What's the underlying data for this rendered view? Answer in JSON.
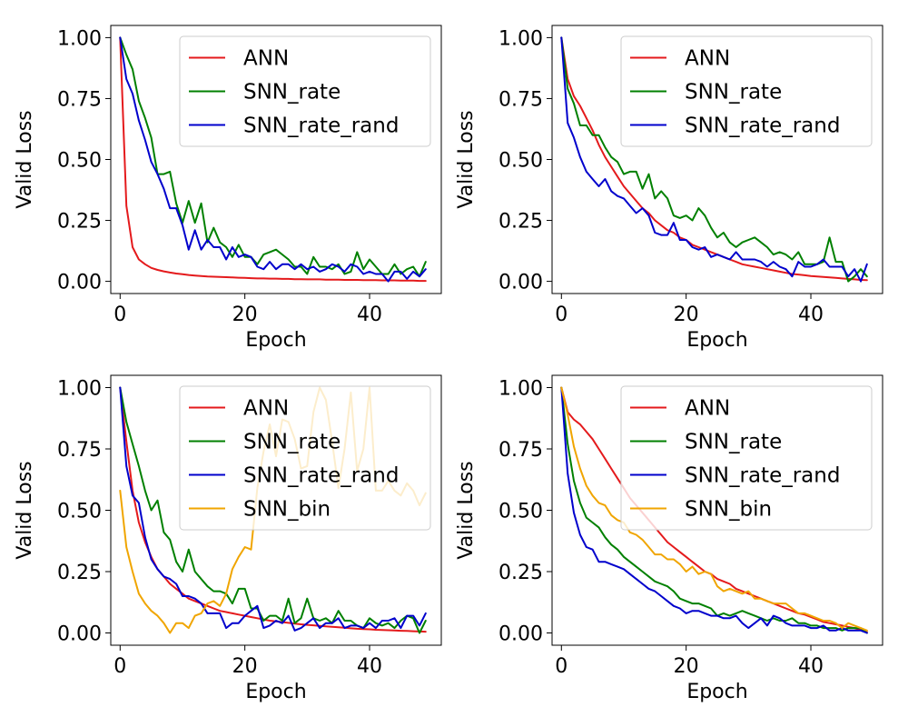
{
  "chart_data": [
    {
      "type": "line",
      "xlabel": "Epoch",
      "ylabel": "Valid Loss",
      "xlim": [
        -1.5,
        51.5
      ],
      "ylim": [
        -0.05,
        1.05
      ],
      "xticks": [
        0,
        20,
        40
      ],
      "xtick_labels": [
        "0",
        "20",
        "40"
      ],
      "yticks": [
        0,
        0.25,
        0.5,
        0.75,
        1.0
      ],
      "ytick_labels": [
        "0.00",
        "0.25",
        "0.50",
        "0.75",
        "1.00"
      ],
      "legend_position": "top-right",
      "series": [
        {
          "name": "ANN",
          "color": "#e41a1c",
          "values": [
            1.0,
            0.31,
            0.14,
            0.09,
            0.07,
            0.055,
            0.047,
            0.041,
            0.036,
            0.032,
            0.029,
            0.026,
            0.024,
            0.022,
            0.02,
            0.019,
            0.018,
            0.017,
            0.016,
            0.015,
            0.014,
            0.013,
            0.012,
            0.012,
            0.011,
            0.011,
            0.01,
            0.01,
            0.009,
            0.009,
            0.008,
            0.008,
            0.008,
            0.007,
            0.007,
            0.007,
            0.006,
            0.006,
            0.006,
            0.005,
            0.005,
            0.005,
            0.004,
            0.004,
            0.004,
            0.003,
            0.003,
            0.003,
            0.002,
            0.002
          ]
        },
        {
          "name": "SNN_rate",
          "color": "#008000",
          "values": [
            1.0,
            0.93,
            0.87,
            0.74,
            0.67,
            0.59,
            0.44,
            0.44,
            0.45,
            0.32,
            0.24,
            0.33,
            0.24,
            0.32,
            0.16,
            0.22,
            0.16,
            0.14,
            0.1,
            0.15,
            0.1,
            0.1,
            0.07,
            0.11,
            0.12,
            0.13,
            0.11,
            0.09,
            0.06,
            0.06,
            0.03,
            0.1,
            0.06,
            0.06,
            0.05,
            0.07,
            0.03,
            0.04,
            0.12,
            0.05,
            0.09,
            0.06,
            0.03,
            0.03,
            0.07,
            0.03,
            0.05,
            0.06,
            0.02,
            0.08
          ]
        },
        {
          "name": "SNN_rate_rand",
          "color": "#0000cc",
          "values": [
            1.0,
            0.83,
            0.77,
            0.66,
            0.58,
            0.49,
            0.44,
            0.38,
            0.3,
            0.3,
            0.23,
            0.13,
            0.21,
            0.13,
            0.17,
            0.14,
            0.14,
            0.09,
            0.14,
            0.1,
            0.11,
            0.1,
            0.06,
            0.05,
            0.08,
            0.05,
            0.07,
            0.07,
            0.05,
            0.07,
            0.05,
            0.06,
            0.04,
            0.05,
            0.07,
            0.06,
            0.04,
            0.07,
            0.06,
            0.03,
            0.04,
            0.03,
            0.03,
            0.0,
            0.04,
            0.04,
            0.01,
            0.04,
            0.02,
            0.05
          ]
        }
      ]
    },
    {
      "type": "line",
      "xlabel": "Epoch",
      "ylabel": "Valid Loss",
      "xlim": [
        -1.5,
        51.5
      ],
      "ylim": [
        -0.05,
        1.05
      ],
      "xticks": [
        0,
        20,
        40
      ],
      "xtick_labels": [
        "0",
        "20",
        "40"
      ],
      "yticks": [
        0,
        0.25,
        0.5,
        0.75,
        1.0
      ],
      "ytick_labels": [
        "0.00",
        "0.25",
        "0.50",
        "0.75",
        "1.00"
      ],
      "legend_position": "top-right",
      "series": [
        {
          "name": "ANN",
          "color": "#e41a1c",
          "values": [
            1.0,
            0.83,
            0.76,
            0.72,
            0.67,
            0.62,
            0.56,
            0.51,
            0.47,
            0.43,
            0.39,
            0.36,
            0.33,
            0.3,
            0.28,
            0.25,
            0.23,
            0.21,
            0.2,
            0.18,
            0.17,
            0.15,
            0.14,
            0.13,
            0.12,
            0.11,
            0.1,
            0.09,
            0.08,
            0.07,
            0.065,
            0.06,
            0.055,
            0.05,
            0.045,
            0.04,
            0.035,
            0.03,
            0.028,
            0.025,
            0.022,
            0.02,
            0.018,
            0.016,
            0.014,
            0.012,
            0.01,
            0.008,
            0.006,
            0.005
          ]
        },
        {
          "name": "SNN_rate",
          "color": "#008000",
          "values": [
            1.0,
            0.79,
            0.73,
            0.64,
            0.64,
            0.6,
            0.6,
            0.55,
            0.51,
            0.49,
            0.44,
            0.45,
            0.45,
            0.38,
            0.44,
            0.34,
            0.37,
            0.34,
            0.27,
            0.26,
            0.27,
            0.25,
            0.3,
            0.27,
            0.22,
            0.18,
            0.2,
            0.16,
            0.14,
            0.16,
            0.17,
            0.18,
            0.16,
            0.14,
            0.11,
            0.12,
            0.11,
            0.09,
            0.12,
            0.07,
            0.07,
            0.07,
            0.08,
            0.18,
            0.08,
            0.08,
            0.0,
            0.02,
            0.05,
            0.02
          ]
        },
        {
          "name": "SNN_rate_rand",
          "color": "#0000cc",
          "values": [
            1.0,
            0.65,
            0.59,
            0.51,
            0.45,
            0.42,
            0.39,
            0.42,
            0.37,
            0.35,
            0.34,
            0.31,
            0.28,
            0.3,
            0.27,
            0.2,
            0.19,
            0.19,
            0.24,
            0.17,
            0.17,
            0.14,
            0.13,
            0.14,
            0.1,
            0.11,
            0.1,
            0.09,
            0.12,
            0.09,
            0.09,
            0.09,
            0.08,
            0.06,
            0.08,
            0.06,
            0.05,
            0.02,
            0.08,
            0.06,
            0.06,
            0.07,
            0.09,
            0.06,
            0.06,
            0.06,
            0.02,
            0.05,
            0.0,
            0.07
          ]
        }
      ]
    },
    {
      "type": "line",
      "xlabel": "Epoch",
      "ylabel": "Valid Loss",
      "xlim": [
        -1.5,
        51.5
      ],
      "ylim": [
        -0.05,
        1.05
      ],
      "xticks": [
        0,
        20,
        40
      ],
      "xtick_labels": [
        "0",
        "20",
        "40"
      ],
      "yticks": [
        0,
        0.25,
        0.5,
        0.75,
        1.0
      ],
      "ytick_labels": [
        "0.00",
        "0.25",
        "0.50",
        "0.75",
        "1.00"
      ],
      "legend_position": "top-right",
      "series": [
        {
          "name": "ANN",
          "color": "#e41a1c",
          "values": [
            1.0,
            0.78,
            0.58,
            0.45,
            0.37,
            0.31,
            0.26,
            0.23,
            0.2,
            0.18,
            0.16,
            0.14,
            0.13,
            0.12,
            0.11,
            0.1,
            0.09,
            0.085,
            0.08,
            0.075,
            0.07,
            0.065,
            0.06,
            0.055,
            0.05,
            0.047,
            0.044,
            0.041,
            0.038,
            0.035,
            0.033,
            0.031,
            0.029,
            0.027,
            0.025,
            0.023,
            0.021,
            0.019,
            0.017,
            0.016,
            0.015,
            0.013,
            0.012,
            0.011,
            0.01,
            0.009,
            0.008,
            0.007,
            0.006,
            0.005
          ]
        },
        {
          "name": "SNN_rate",
          "color": "#008000",
          "values": [
            1.0,
            0.86,
            0.77,
            0.68,
            0.58,
            0.5,
            0.54,
            0.41,
            0.38,
            0.29,
            0.25,
            0.34,
            0.25,
            0.22,
            0.19,
            0.17,
            0.17,
            0.16,
            0.12,
            0.18,
            0.18,
            0.1,
            0.1,
            0.05,
            0.07,
            0.07,
            0.05,
            0.14,
            0.04,
            0.06,
            0.14,
            0.06,
            0.05,
            0.06,
            0.04,
            0.09,
            0.05,
            0.05,
            0.03,
            0.02,
            0.06,
            0.04,
            0.03,
            0.04,
            0.02,
            0.05,
            0.07,
            0.06,
            0.0,
            0.05
          ]
        },
        {
          "name": "SNN_rate_rand",
          "color": "#0000cc",
          "values": [
            1.0,
            0.68,
            0.56,
            0.53,
            0.39,
            0.3,
            0.26,
            0.23,
            0.22,
            0.2,
            0.15,
            0.15,
            0.14,
            0.12,
            0.08,
            0.08,
            0.08,
            0.02,
            0.04,
            0.04,
            0.07,
            0.09,
            0.11,
            0.02,
            0.03,
            0.05,
            0.04,
            0.07,
            0.01,
            0.02,
            0.04,
            0.06,
            0.02,
            0.04,
            0.04,
            0.06,
            0.02,
            0.03,
            0.03,
            0.02,
            0.04,
            0.02,
            0.05,
            0.05,
            0.06,
            0.02,
            0.07,
            0.07,
            0.03,
            0.08
          ]
        },
        {
          "name": "SNN_bin",
          "color": "#f0a500",
          "values": [
            0.58,
            0.35,
            0.25,
            0.16,
            0.12,
            0.09,
            0.07,
            0.04,
            0.0,
            0.04,
            0.04,
            0.02,
            0.07,
            0.08,
            0.12,
            0.13,
            0.11,
            0.16,
            0.26,
            0.31,
            0.35,
            0.34,
            0.59,
            0.74,
            0.85,
            0.72,
            0.87,
            0.86,
            0.79,
            0.67,
            0.68,
            0.9,
            1.0,
            0.95,
            0.78,
            0.59,
            0.75,
            0.98,
            0.66,
            0.75,
            1.0,
            0.58,
            0.58,
            0.62,
            0.58,
            0.56,
            0.61,
            0.58,
            0.52,
            0.57
          ]
        }
      ]
    },
    {
      "type": "line",
      "xlabel": "Epoch",
      "ylabel": "Valid Loss",
      "xlim": [
        -1.5,
        51.5
      ],
      "ylim": [
        -0.05,
        1.05
      ],
      "xticks": [
        0,
        20,
        40
      ],
      "xtick_labels": [
        "0",
        "20",
        "40"
      ],
      "yticks": [
        0,
        0.25,
        0.5,
        0.75,
        1.0
      ],
      "ytick_labels": [
        "0.00",
        "0.25",
        "0.50",
        "0.75",
        "1.00"
      ],
      "legend_position": "top-right",
      "series": [
        {
          "name": "ANN",
          "color": "#e41a1c",
          "values": [
            1.0,
            0.9,
            0.87,
            0.85,
            0.82,
            0.79,
            0.75,
            0.71,
            0.67,
            0.63,
            0.59,
            0.55,
            0.52,
            0.49,
            0.46,
            0.43,
            0.4,
            0.37,
            0.35,
            0.33,
            0.31,
            0.29,
            0.27,
            0.25,
            0.24,
            0.22,
            0.21,
            0.2,
            0.18,
            0.17,
            0.16,
            0.15,
            0.14,
            0.13,
            0.12,
            0.11,
            0.1,
            0.09,
            0.08,
            0.075,
            0.065,
            0.055,
            0.045,
            0.04,
            0.035,
            0.03,
            0.025,
            0.02,
            0.012,
            0.005
          ]
        },
        {
          "name": "SNN_rate",
          "color": "#008000",
          "values": [
            1.0,
            0.77,
            0.62,
            0.53,
            0.47,
            0.45,
            0.43,
            0.39,
            0.36,
            0.34,
            0.31,
            0.29,
            0.27,
            0.25,
            0.23,
            0.21,
            0.2,
            0.19,
            0.17,
            0.14,
            0.13,
            0.12,
            0.12,
            0.11,
            0.1,
            0.07,
            0.08,
            0.07,
            0.08,
            0.09,
            0.08,
            0.07,
            0.06,
            0.05,
            0.06,
            0.05,
            0.05,
            0.06,
            0.04,
            0.04,
            0.03,
            0.03,
            0.02,
            0.02,
            0.02,
            0.01,
            0.02,
            0.02,
            0.02,
            0.0
          ]
        },
        {
          "name": "SNN_rate_rand",
          "color": "#0000cc",
          "values": [
            1.0,
            0.65,
            0.49,
            0.4,
            0.35,
            0.34,
            0.29,
            0.29,
            0.28,
            0.27,
            0.26,
            0.24,
            0.22,
            0.2,
            0.18,
            0.17,
            0.15,
            0.13,
            0.11,
            0.1,
            0.08,
            0.09,
            0.09,
            0.08,
            0.07,
            0.07,
            0.06,
            0.06,
            0.07,
            0.04,
            0.02,
            0.04,
            0.06,
            0.03,
            0.07,
            0.06,
            0.04,
            0.03,
            0.03,
            0.03,
            0.02,
            0.02,
            0.03,
            0.01,
            0.01,
            0.02,
            0.01,
            0.01,
            0.01,
            0.0
          ]
        },
        {
          "name": "SNN_bin",
          "color": "#f0a500",
          "values": [
            1.0,
            0.89,
            0.76,
            0.67,
            0.6,
            0.56,
            0.53,
            0.52,
            0.48,
            0.46,
            0.45,
            0.41,
            0.4,
            0.38,
            0.35,
            0.32,
            0.32,
            0.3,
            0.3,
            0.28,
            0.25,
            0.27,
            0.24,
            0.25,
            0.24,
            0.19,
            0.17,
            0.18,
            0.17,
            0.16,
            0.17,
            0.14,
            0.14,
            0.13,
            0.12,
            0.12,
            0.12,
            0.1,
            0.08,
            0.08,
            0.07,
            0.06,
            0.05,
            0.05,
            0.04,
            0.02,
            0.04,
            0.03,
            0.02,
            0.01
          ]
        }
      ]
    }
  ]
}
